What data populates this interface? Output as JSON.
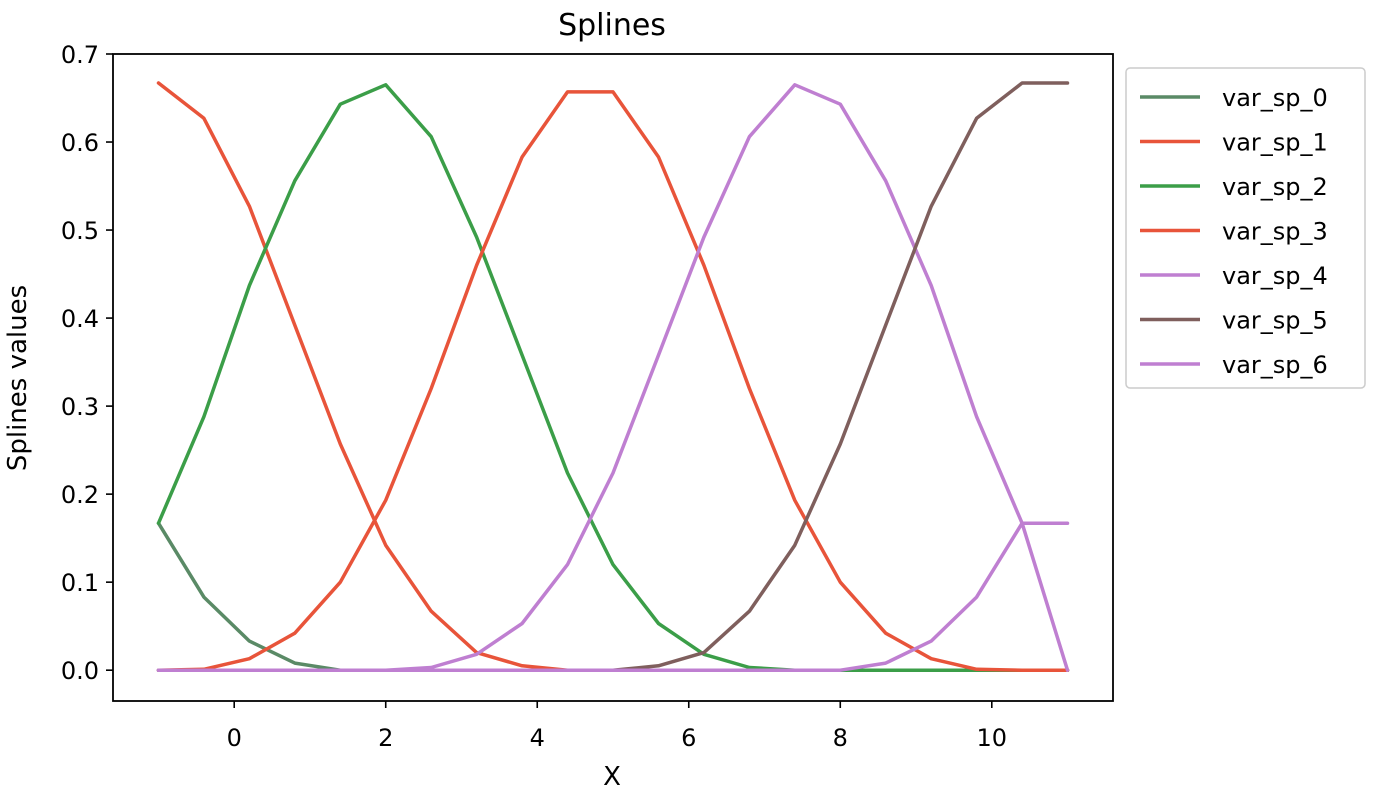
{
  "chart_data": {
    "type": "line",
    "title": "Splines",
    "xlabel": "X",
    "ylabel": "Splines values",
    "xlim": [
      -1.6,
      11.6
    ],
    "ylim": [
      -0.035,
      0.7
    ],
    "xticks": [
      0,
      2,
      4,
      6,
      8,
      10
    ],
    "yticks": [
      0.0,
      0.1,
      0.2,
      0.3,
      0.4,
      0.5,
      0.6,
      0.7
    ],
    "xtick_labels": [
      "0",
      "2",
      "4",
      "6",
      "8",
      "10"
    ],
    "ytick_labels": [
      "0.0",
      "0.1",
      "0.2",
      "0.3",
      "0.4",
      "0.5",
      "0.6",
      "0.7"
    ],
    "grid": false,
    "legend_position": "outside-right-top",
    "x": [
      -1.0,
      -0.4,
      0.2,
      0.8,
      1.4,
      2.0,
      2.6,
      3.2,
      3.8,
      4.4,
      5.0,
      5.6,
      6.2,
      6.8,
      7.4,
      8.0,
      8.6,
      9.2,
      9.8,
      10.4,
      11.0
    ],
    "series": [
      {
        "name": "var_sp_0",
        "color": "#5a8a66",
        "values": [
          0.167,
          0.083,
          0.033,
          0.008,
          0.0,
          0.0,
          0.0,
          0.0,
          0.0,
          0.0,
          0.0,
          0.0,
          0.0,
          0.0,
          0.0,
          0.0,
          0.0,
          0.0,
          0.0,
          0.0,
          0.0
        ]
      },
      {
        "name": "var_sp_1",
        "color": "#e8543a",
        "values": [
          0.667,
          0.627,
          0.527,
          0.392,
          0.257,
          0.142,
          0.067,
          0.02,
          0.005,
          0.0,
          0.0,
          0.0,
          0.0,
          0.0,
          0.0,
          0.0,
          0.0,
          0.0,
          0.0,
          0.0,
          0.0
        ]
      },
      {
        "name": "var_sp_2",
        "color": "#3b9e48",
        "values": [
          0.167,
          0.288,
          0.437,
          0.556,
          0.643,
          0.665,
          0.606,
          0.492,
          0.358,
          0.224,
          0.12,
          0.053,
          0.018,
          0.003,
          0.0,
          0.0,
          0.0,
          0.0,
          0.0,
          0.0,
          0.0
        ]
      },
      {
        "name": "var_sp_3",
        "color": "#e8543a",
        "values": [
          0.0,
          0.001,
          0.013,
          0.042,
          0.1,
          0.193,
          0.32,
          0.46,
          0.583,
          0.657,
          0.657,
          0.583,
          0.46,
          0.32,
          0.193,
          0.1,
          0.042,
          0.013,
          0.001,
          0.0,
          0.0
        ]
      },
      {
        "name": "var_sp_4",
        "color": "#bf7fd1",
        "values": [
          0.0,
          0.0,
          0.0,
          0.0,
          0.0,
          0.0,
          0.003,
          0.018,
          0.053,
          0.12,
          0.224,
          0.358,
          0.492,
          0.606,
          0.665,
          0.643,
          0.556,
          0.437,
          0.288,
          0.167,
          0.0
        ]
      },
      {
        "name": "var_sp_5",
        "color": "#7f5f5d",
        "values": [
          0.0,
          0.0,
          0.0,
          0.0,
          0.0,
          0.0,
          0.0,
          0.0,
          0.0,
          0.0,
          0.0,
          0.005,
          0.02,
          0.067,
          0.142,
          0.257,
          0.392,
          0.527,
          0.627,
          0.667,
          0.667
        ]
      },
      {
        "name": "var_sp_6",
        "color": "#bf7fd1",
        "values": [
          0.0,
          0.0,
          0.0,
          0.0,
          0.0,
          0.0,
          0.0,
          0.0,
          0.0,
          0.0,
          0.0,
          0.0,
          0.0,
          0.0,
          0.0,
          0.0,
          0.008,
          0.033,
          0.083,
          0.167,
          0.167
        ]
      }
    ]
  }
}
